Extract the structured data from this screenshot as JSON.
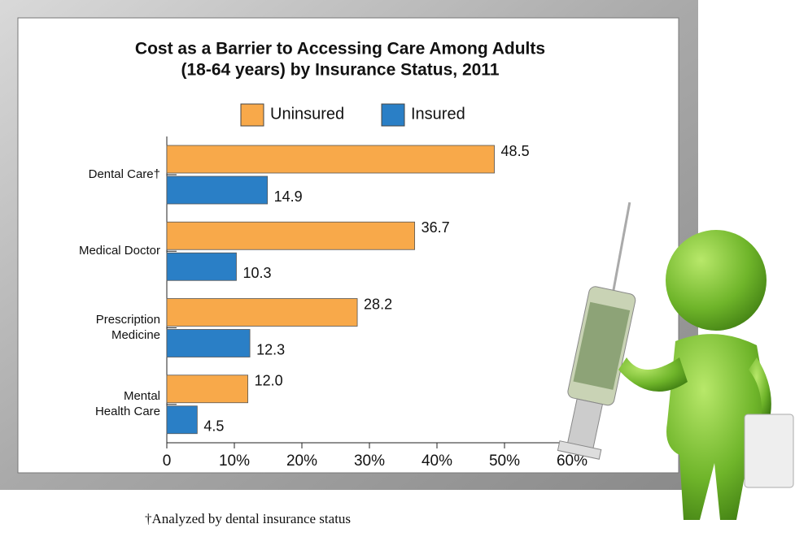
{
  "chart_data": {
    "type": "hbar",
    "title": [
      "Cost as a Barrier to Accessing Care Among Adults",
      "(18-64 years) by Insurance Status, 2011"
    ],
    "categories": [
      [
        "Dental Care†"
      ],
      [
        "Medical Doctor"
      ],
      [
        "Prescription",
        "Medicine"
      ],
      [
        "Mental",
        "Health Care"
      ]
    ],
    "series": [
      {
        "name": "Uninsured",
        "color": "#f8a94a",
        "values": [
          48.5,
          36.7,
          28.2,
          12
        ],
        "value_labels": [
          "48.5",
          "36.7",
          "28.2",
          "12.0"
        ]
      },
      {
        "name": "Insured",
        "color": "#2a7fc6",
        "values": [
          14.9,
          10.3,
          12.3,
          4.5
        ],
        "value_labels": [
          "14.9",
          "10.3",
          "12.3",
          "4.5"
        ]
      }
    ],
    "xlim": [
      0,
      60
    ],
    "xticks": [
      0,
      {
        "value": 10,
        "label": "10%"
      },
      {
        "value": 20,
        "label": "20%"
      },
      {
        "value": 30,
        "label": "30%"
      },
      {
        "value": 40,
        "label": "40%"
      },
      {
        "value": 50,
        "label": "50%"
      },
      {
        "value": 60,
        "label": "60%"
      }
    ],
    "legend": "top",
    "footnote": "†Analyzed by dental insurance status"
  }
}
